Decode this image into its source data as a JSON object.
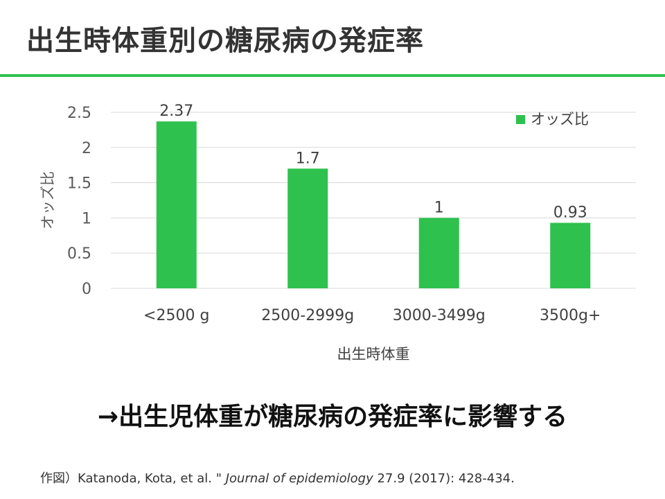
{
  "slide": {
    "title": "出生時体重別の糖尿病の発症率",
    "conclusion": "→出生児体重が糖尿病の発症率に影響する",
    "citation": {
      "prefix": "作図）Katanoda, Kota, et al. \" ",
      "journal": "Journal of epidemiology",
      "suffix": " 27.9 (2017): 428-434."
    },
    "accent_color": "#2ec14e"
  },
  "chart_data": {
    "type": "bar",
    "categories": [
      "<2500 g",
      "2500-2999g",
      "3000-3499g",
      "3500g+"
    ],
    "series": [
      {
        "name": "オッズ比",
        "values": [
          2.37,
          1.7,
          1,
          0.93
        ],
        "color": "#2ec14e"
      }
    ],
    "data_labels": [
      "2.37",
      "1.7",
      "1",
      "0.93"
    ],
    "xlabel": "出生時体重",
    "ylabel": "オッズ比",
    "ylim": [
      0,
      2.5
    ],
    "yticks": [
      0,
      0.5,
      1,
      1.5,
      2,
      2.5
    ],
    "ytick_labels": [
      "0",
      "0.5",
      "1",
      "1.5",
      "2",
      "2.5"
    ],
    "grid": true,
    "legend_position": "top-right"
  }
}
